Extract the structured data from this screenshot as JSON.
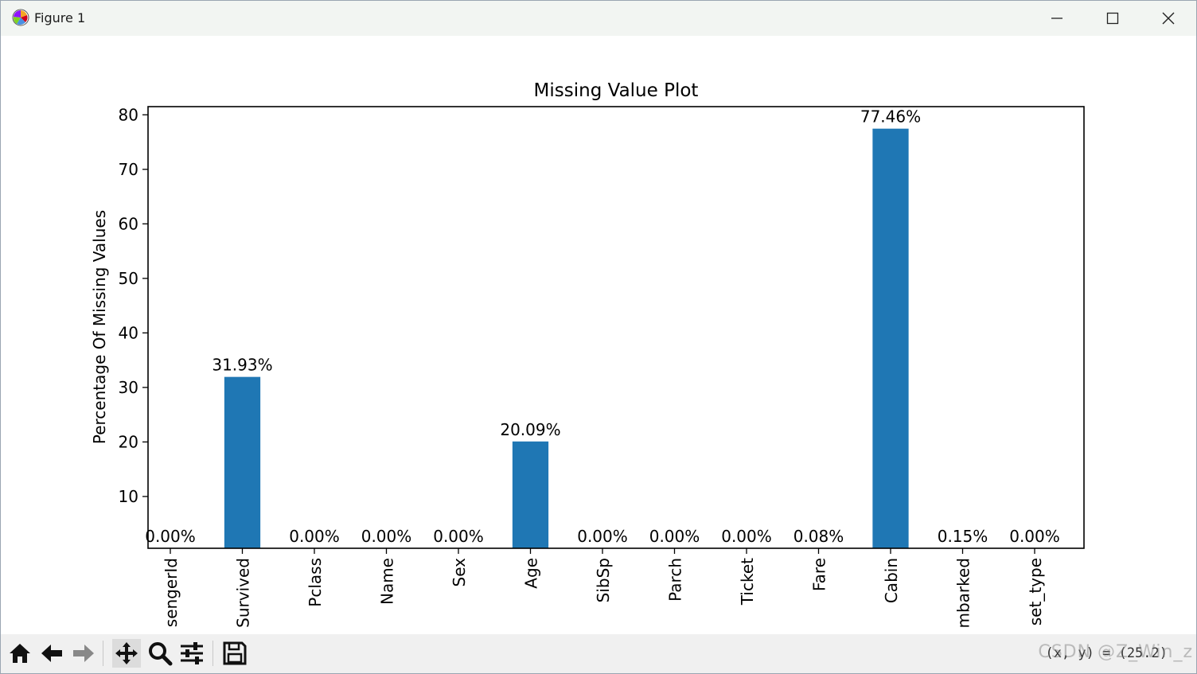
{
  "window": {
    "title": "Figure 1",
    "controls": {
      "minimize_icon": "minimize-icon",
      "maximize_icon": "maximize-icon",
      "close_icon": "close-icon"
    }
  },
  "toolbar": {
    "buttons": [
      "home-icon",
      "back-arrow-icon",
      "forward-arrow-icon",
      "pan-icon",
      "zoom-icon",
      "configure-icon",
      "save-icon"
    ],
    "coordinate_readout": "(x, y) = (",
    "coordinate_tail": "25.2)",
    "watermark": "CSDN @Z_Win_z"
  },
  "chart_data": {
    "type": "bar",
    "title": "Missing Value Plot",
    "xlabel": "",
    "ylabel": "Percentage Of Missing Values",
    "categories": [
      "PassengerId",
      "Survived",
      "Pclass",
      "Name",
      "Sex",
      "Age",
      "SibSp",
      "Parch",
      "Ticket",
      "Fare",
      "Cabin",
      "Embarked",
      "dataset_type"
    ],
    "visible_tick_labels": [
      "sengerId",
      "Survived",
      "Pclass",
      "Name",
      "Sex",
      "Age",
      "SibSp",
      "Parch",
      "Ticket",
      "Fare",
      "Cabin",
      "mbarked",
      "set_type"
    ],
    "values": [
      0.0,
      31.93,
      0.0,
      0.0,
      0.0,
      20.09,
      0.0,
      0.0,
      0.0,
      0.08,
      77.46,
      0.15,
      0.0
    ],
    "data_labels": [
      "0.00%",
      "31.93%",
      "0.00%",
      "0.00%",
      "0.00%",
      "20.09%",
      "0.00%",
      "0.00%",
      "0.00%",
      "0.08%",
      "77.46%",
      "0.15%",
      "0.00%"
    ],
    "yticks": [
      10,
      20,
      30,
      40,
      50,
      60,
      70,
      80
    ],
    "ylim": [
      0.5,
      81.5
    ],
    "grid": false,
    "legend": "none",
    "bar_color": "#1f77b4"
  }
}
